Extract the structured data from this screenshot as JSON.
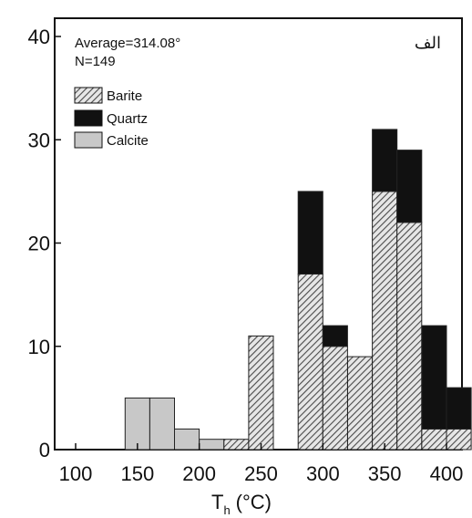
{
  "chart_data": {
    "type": "bar",
    "xlabel": "T",
    "xlabel_sub": "h",
    "xlabel_unit": "(°C)",
    "corner_label": "الف",
    "annotations": [
      "Average=314.08°",
      "N=149"
    ],
    "xlim": [
      85,
      405
    ],
    "ylim": [
      0,
      42
    ],
    "xticks": [
      100,
      150,
      200,
      250,
      300,
      350,
      400
    ],
    "yticks": [
      0,
      10,
      20,
      30,
      40
    ],
    "bin_width": 20,
    "colors": {
      "Barite": "#9a9a9a",
      "Quartz": "#111111",
      "Calcite": "#c8c8c8"
    },
    "legend": {
      "position": "top-left",
      "entries": [
        "Barite",
        "Quartz",
        "Calcite"
      ]
    },
    "stack_order": [
      "Calcite",
      "Barite",
      "Quartz"
    ],
    "series": [
      {
        "name": "Calcite",
        "bins": [
          {
            "x_start": 140,
            "x_end": 160,
            "value": 5
          },
          {
            "x_start": 160,
            "x_end": 180,
            "value": 5
          },
          {
            "x_start": 180,
            "x_end": 200,
            "value": 2
          },
          {
            "x_start": 200,
            "x_end": 220,
            "value": 1
          }
        ]
      },
      {
        "name": "Barite",
        "bins": [
          {
            "x_start": 220,
            "x_end": 240,
            "value": 1
          },
          {
            "x_start": 240,
            "x_end": 260,
            "value": 11
          },
          {
            "x_start": 280,
            "x_end": 300,
            "value": 17
          },
          {
            "x_start": 300,
            "x_end": 320,
            "value": 10
          },
          {
            "x_start": 320,
            "x_end": 340,
            "value": 9
          },
          {
            "x_start": 340,
            "x_end": 360,
            "value": 25
          },
          {
            "x_start": 360,
            "x_end": 380,
            "value": 22
          },
          {
            "x_start": 380,
            "x_end": 400,
            "value": 2
          },
          {
            "x_start": 400,
            "x_end": 420,
            "value": 2
          }
        ]
      },
      {
        "name": "Quartz",
        "bins": [
          {
            "x_start": 280,
            "x_end": 300,
            "value": 8
          },
          {
            "x_start": 300,
            "x_end": 320,
            "value": 2
          },
          {
            "x_start": 340,
            "x_end": 360,
            "value": 6
          },
          {
            "x_start": 360,
            "x_end": 380,
            "value": 7
          },
          {
            "x_start": 380,
            "x_end": 400,
            "value": 10
          },
          {
            "x_start": 400,
            "x_end": 420,
            "value": 4
          }
        ]
      }
    ]
  }
}
